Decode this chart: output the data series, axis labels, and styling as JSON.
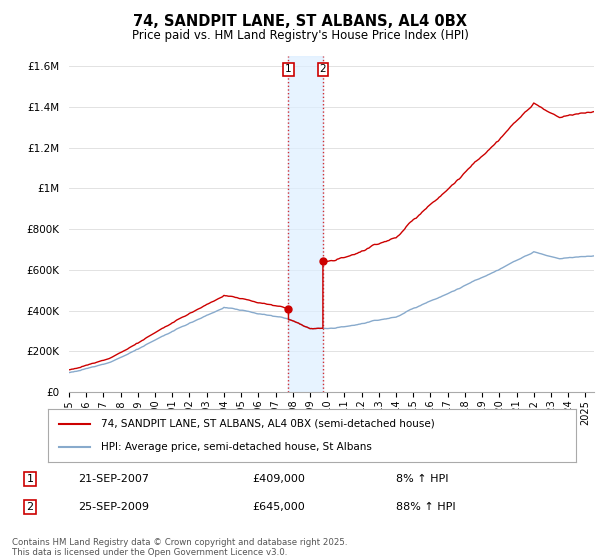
{
  "title": "74, SANDPIT LANE, ST ALBANS, AL4 0BX",
  "subtitle": "Price paid vs. HM Land Registry's House Price Index (HPI)",
  "ylim": [
    0,
    1650000
  ],
  "yticks": [
    0,
    200000,
    400000,
    600000,
    800000,
    1000000,
    1200000,
    1400000,
    1600000
  ],
  "ytick_labels": [
    "£0",
    "£200K",
    "£400K",
    "£600K",
    "£800K",
    "£1M",
    "£1.2M",
    "£1.4M",
    "£1.6M"
  ],
  "xlim_start": 1995.0,
  "xlim_end": 2025.5,
  "legend_line1": "74, SANDPIT LANE, ST ALBANS, AL4 0BX (semi-detached house)",
  "legend_line2": "HPI: Average price, semi-detached house, St Albans",
  "line1_color": "#cc0000",
  "line2_color": "#88aacc",
  "transaction1_date": "21-SEP-2007",
  "transaction1_price": "£409,000",
  "transaction1_pct": "8% ↑ HPI",
  "transaction2_date": "25-SEP-2009",
  "transaction2_price": "£645,000",
  "transaction2_pct": "88% ↑ HPI",
  "footer": "Contains HM Land Registry data © Crown copyright and database right 2025.\nThis data is licensed under the Open Government Licence v3.0.",
  "background_color": "#ffffff",
  "grid_color": "#dddddd",
  "shade_color": "#ddeeff",
  "sale1_year": 2007.75,
  "sale2_year": 2009.75,
  "sale1_price": 409000,
  "sale2_price": 645000
}
